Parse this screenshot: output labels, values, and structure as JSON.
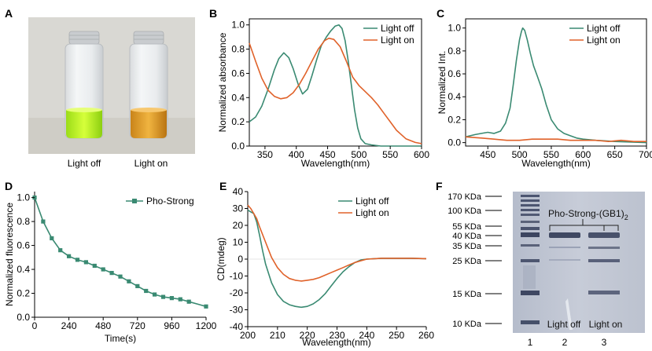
{
  "colors": {
    "light_off": "#3a8a72",
    "light_on": "#e0622a",
    "pho_strong": "#3a8a72",
    "axis": "#000000"
  },
  "panels": {
    "A": {
      "letter": "A",
      "labels": [
        "Light off",
        "Light on"
      ]
    },
    "F": {
      "letter": "F",
      "markers": [
        "170 KDa",
        "100 KDa",
        "55 KDa",
        "40 KDa",
        "35 KDa",
        "25 KDa",
        "15 KDa",
        "10 KDa"
      ],
      "protein_label": "Pho-Strong-(GB1)",
      "protein_sub": "2",
      "lane_numbers": [
        "1",
        "2",
        "3"
      ],
      "lane_labels": [
        "Light off",
        "Light on"
      ]
    }
  },
  "chart_data": [
    {
      "id": "B",
      "letter": "B",
      "type": "line",
      "xlabel": "Wavelength(nm)",
      "ylabel": "Normalized absorbance",
      "xlim": [
        325,
        600
      ],
      "ylim": [
        0,
        1.05
      ],
      "xticks": [
        350,
        400,
        450,
        500,
        550,
        600
      ],
      "yticks": [
        0.0,
        0.2,
        0.4,
        0.6,
        0.8,
        1.0
      ],
      "legend": "top-right",
      "series": [
        {
          "name": "Light off",
          "color_key": "light_off",
          "x": [
            325,
            335,
            345,
            355,
            365,
            372,
            380,
            388,
            395,
            403,
            410,
            418,
            425,
            433,
            440,
            448,
            455,
            462,
            468,
            473,
            478,
            483,
            488,
            493,
            498,
            503,
            510,
            520,
            535,
            550,
            575,
            600
          ],
          "y": [
            0.2,
            0.24,
            0.33,
            0.47,
            0.63,
            0.72,
            0.77,
            0.73,
            0.64,
            0.51,
            0.43,
            0.47,
            0.58,
            0.72,
            0.83,
            0.9,
            0.95,
            0.99,
            1.0,
            0.97,
            0.87,
            0.7,
            0.5,
            0.3,
            0.15,
            0.06,
            0.02,
            0.01,
            0.0,
            0.0,
            0.0,
            0.0
          ]
        },
        {
          "name": "Light on",
          "color_key": "light_on",
          "x": [
            325,
            335,
            345,
            355,
            365,
            375,
            385,
            395,
            405,
            415,
            425,
            435,
            445,
            452,
            460,
            470,
            480,
            490,
            500,
            510,
            520,
            530,
            540,
            550,
            560,
            575,
            590,
            600
          ],
          "y": [
            0.85,
            0.7,
            0.56,
            0.46,
            0.41,
            0.39,
            0.4,
            0.44,
            0.51,
            0.6,
            0.7,
            0.8,
            0.87,
            0.89,
            0.88,
            0.82,
            0.7,
            0.57,
            0.5,
            0.45,
            0.4,
            0.34,
            0.27,
            0.2,
            0.13,
            0.06,
            0.03,
            0.02
          ]
        }
      ]
    },
    {
      "id": "C",
      "letter": "C",
      "type": "line",
      "xlabel": "Wavelength(nm)",
      "ylabel": "Normalized Int.",
      "xlim": [
        415,
        700
      ],
      "ylim": [
        -0.03,
        1.08
      ],
      "xticks": [
        450,
        500,
        550,
        600,
        650,
        700
      ],
      "yticks": [
        0.0,
        0.2,
        0.4,
        0.6,
        0.8,
        1.0
      ],
      "legend": "top-right",
      "series": [
        {
          "name": "Light off",
          "color_key": "light_off",
          "x": [
            415,
            430,
            440,
            450,
            460,
            470,
            478,
            485,
            490,
            495,
            500,
            503,
            505,
            508,
            512,
            517,
            522,
            528,
            535,
            542,
            550,
            560,
            570,
            580,
            590,
            600,
            620,
            650,
            700
          ],
          "y": [
            0.05,
            0.07,
            0.08,
            0.09,
            0.08,
            0.1,
            0.17,
            0.3,
            0.5,
            0.72,
            0.9,
            0.97,
            1.0,
            0.98,
            0.9,
            0.78,
            0.67,
            0.58,
            0.47,
            0.33,
            0.2,
            0.12,
            0.08,
            0.06,
            0.04,
            0.03,
            0.02,
            0.01,
            0.0
          ]
        },
        {
          "name": "Light on",
          "color_key": "light_on",
          "x": [
            415,
            440,
            460,
            480,
            500,
            520,
            540,
            560,
            580,
            600,
            620,
            640,
            660,
            680,
            700
          ],
          "y": [
            0.05,
            0.04,
            0.03,
            0.02,
            0.02,
            0.03,
            0.03,
            0.03,
            0.02,
            0.02,
            0.02,
            0.01,
            0.02,
            0.01,
            0.01
          ]
        }
      ]
    },
    {
      "id": "D",
      "letter": "D",
      "type": "line",
      "xlabel": "Time(s)",
      "ylabel": "Normalized fluorescence",
      "xlim": [
        0,
        1200
      ],
      "ylim": [
        0,
        1.05
      ],
      "xticks": [
        0,
        240,
        480,
        720,
        960,
        1200
      ],
      "yticks": [
        0.0,
        0.2,
        0.4,
        0.6,
        0.8,
        1.0
      ],
      "legend": "top-right",
      "series": [
        {
          "name": "Pho-Strong",
          "color_key": "pho_strong",
          "markers": true,
          "x": [
            0,
            60,
            120,
            180,
            240,
            300,
            360,
            420,
            480,
            540,
            600,
            660,
            720,
            780,
            840,
            900,
            960,
            1020,
            1080,
            1200
          ],
          "y": [
            1.0,
            0.8,
            0.66,
            0.56,
            0.51,
            0.48,
            0.46,
            0.43,
            0.4,
            0.37,
            0.34,
            0.3,
            0.26,
            0.22,
            0.19,
            0.17,
            0.16,
            0.15,
            0.13,
            0.09
          ]
        }
      ]
    },
    {
      "id": "E",
      "letter": "E",
      "type": "line",
      "xlabel": "Wavelength(nm)",
      "ylabel": "CD(mdeg)",
      "xlim": [
        200,
        260
      ],
      "ylim": [
        -40,
        40
      ],
      "xticks": [
        200,
        210,
        220,
        230,
        240,
        250,
        260
      ],
      "yticks": [
        -40,
        -30,
        -20,
        -10,
        0,
        10,
        20,
        30,
        40
      ],
      "legend": "top-right",
      "series": [
        {
          "name": "Light off",
          "color_key": "light_off",
          "x": [
            200,
            201,
            202,
            203,
            204,
            205,
            206,
            208,
            210,
            212,
            214,
            216,
            218,
            220,
            222,
            224,
            226,
            228,
            230,
            232,
            234,
            236,
            238,
            240,
            245,
            250,
            255,
            260
          ],
          "y": [
            29,
            28,
            27,
            22,
            14,
            5,
            -3,
            -14,
            -21,
            -25,
            -27,
            -28,
            -28.5,
            -28,
            -26.5,
            -24,
            -20.5,
            -16,
            -11.5,
            -7.5,
            -4.5,
            -2,
            -0.5,
            0,
            0.5,
            0.5,
            0.5,
            0.3
          ]
        },
        {
          "name": "Light on",
          "color_key": "light_on",
          "x": [
            200,
            201,
            202,
            203,
            204,
            206,
            208,
            210,
            212,
            214,
            216,
            218,
            220,
            222,
            224,
            226,
            228,
            230,
            232,
            234,
            236,
            238,
            240,
            245,
            250,
            255,
            260
          ],
          "y": [
            32,
            30,
            27,
            24,
            19,
            10,
            1,
            -5,
            -9,
            -11.5,
            -12.5,
            -13,
            -12.5,
            -12,
            -11,
            -9.5,
            -8,
            -6.5,
            -5,
            -3.5,
            -2,
            -1,
            0,
            0.5,
            0.5,
            0.5,
            0.3
          ]
        }
      ]
    }
  ]
}
